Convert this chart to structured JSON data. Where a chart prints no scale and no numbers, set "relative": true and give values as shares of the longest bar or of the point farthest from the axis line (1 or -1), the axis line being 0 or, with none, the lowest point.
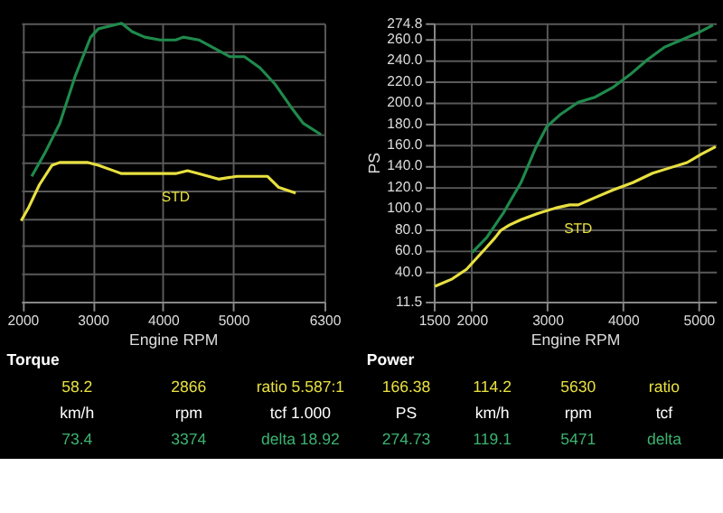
{
  "chart_data": [
    {
      "type": "line",
      "title": "Torque",
      "xlabel": "Engine RPM",
      "relative": true,
      "xlim": [
        1980,
        6300
      ],
      "xticks": [
        2000,
        3000,
        4000,
        5000,
        6300
      ],
      "grid": true,
      "legend": false,
      "tick_labels": "x",
      "marker": "none",
      "line_style": "solid",
      "series": [
        {
          "color": "#1f8a4c",
          "x": [
            2130,
            2310,
            2530,
            2750,
            2970,
            3080,
            3250,
            3410,
            3560,
            3740,
            3960,
            4180,
            4290,
            4510,
            4730,
            4950,
            5160,
            5380,
            5600,
            5820,
            6000,
            6250
          ],
          "values": [
            0.45,
            0.53,
            0.64,
            0.81,
            0.95,
            0.98,
            0.99,
            1,
            0.97,
            0.95,
            0.94,
            0.94,
            0.95,
            0.94,
            0.91,
            0.88,
            0.88,
            0.84,
            0.78,
            0.7,
            0.64,
            0.6
          ]
        },
        {
          "name": "STD",
          "color": "#e8e040",
          "x": [
            1980,
            2090,
            2240,
            2420,
            2530,
            2750,
            2920,
            3080,
            3300,
            3410,
            3740,
            4180,
            4350,
            4510,
            4790,
            5050,
            5490,
            5650,
            5890
          ],
          "values": [
            0.29,
            0.34,
            0.42,
            0.49,
            0.5,
            0.5,
            0.5,
            0.49,
            0.47,
            0.46,
            0.46,
            0.46,
            0.47,
            0.46,
            0.44,
            0.45,
            0.45,
            0.41,
            0.39
          ]
        }
      ]
    },
    {
      "type": "line",
      "title": "Power",
      "xlabel": "Engine RPM",
      "ylabel": "PS",
      "xlim": [
        1500,
        5230
      ],
      "xticks": [
        1500,
        2000,
        3000,
        4000,
        5000
      ],
      "ylim": [
        11.5,
        274.8
      ],
      "yticks": [
        11.5,
        {
          "value": 40,
          "label": "40.0"
        },
        {
          "value": 60,
          "label": "60.0"
        },
        {
          "value": 80,
          "label": "80.0"
        },
        {
          "value": 100,
          "label": "100.0"
        },
        {
          "value": 120,
          "label": "120.0"
        },
        {
          "value": 140,
          "label": "140.0"
        },
        {
          "value": 160,
          "label": "160.0"
        },
        {
          "value": 180,
          "label": "180.0"
        },
        {
          "value": 200,
          "label": "200.0"
        },
        {
          "value": 220,
          "label": "220.0"
        },
        {
          "value": 240,
          "label": "240.0"
        },
        {
          "value": 260,
          "label": "260.0"
        },
        274.8
      ],
      "grid": true,
      "legend": false,
      "marker": "none",
      "line_style": "solid",
      "series": [
        {
          "color": "#1f8a4c",
          "x": [
            2007,
            2198,
            2425,
            2652,
            2841,
            2993,
            3182,
            3409,
            3636,
            3864,
            4091,
            4318,
            4545,
            4773,
            5000,
            5189
          ],
          "values": [
            58,
            72,
            96,
            124,
            156,
            177,
            189,
            200,
            205,
            214,
            226,
            240,
            252,
            259,
            266,
            273
          ]
        },
        {
          "name": "STD",
          "color": "#e8e040",
          "x": [
            1516,
            1743,
            1932,
            2084,
            2198,
            2311,
            2386,
            2500,
            2652,
            2879,
            3107,
            3295,
            3409,
            3636,
            3864,
            4129,
            4393,
            4620,
            4848,
            5038,
            5227
          ],
          "values": [
            26,
            33,
            42,
            54,
            63,
            72,
            79,
            84,
            89,
            95,
            100,
            103,
            103,
            110,
            117,
            124,
            133,
            138,
            143,
            151,
            158
          ]
        }
      ]
    },
    {
      "type": "other",
      "annotations": [
        "58.2",
        "2866",
        "ratio 5.587:1",
        "km/h",
        "rpm",
        "tcf 1.000",
        "73.4",
        "3374",
        "delta 18.92"
      ]
    },
    {
      "type": "other",
      "annotations": [
        "166.38",
        "114.2",
        "5630",
        "ratio",
        "PS",
        "km/h",
        "rpm",
        "tcf",
        "274.73",
        "119.1",
        "5471",
        "delta"
      ]
    }
  ]
}
